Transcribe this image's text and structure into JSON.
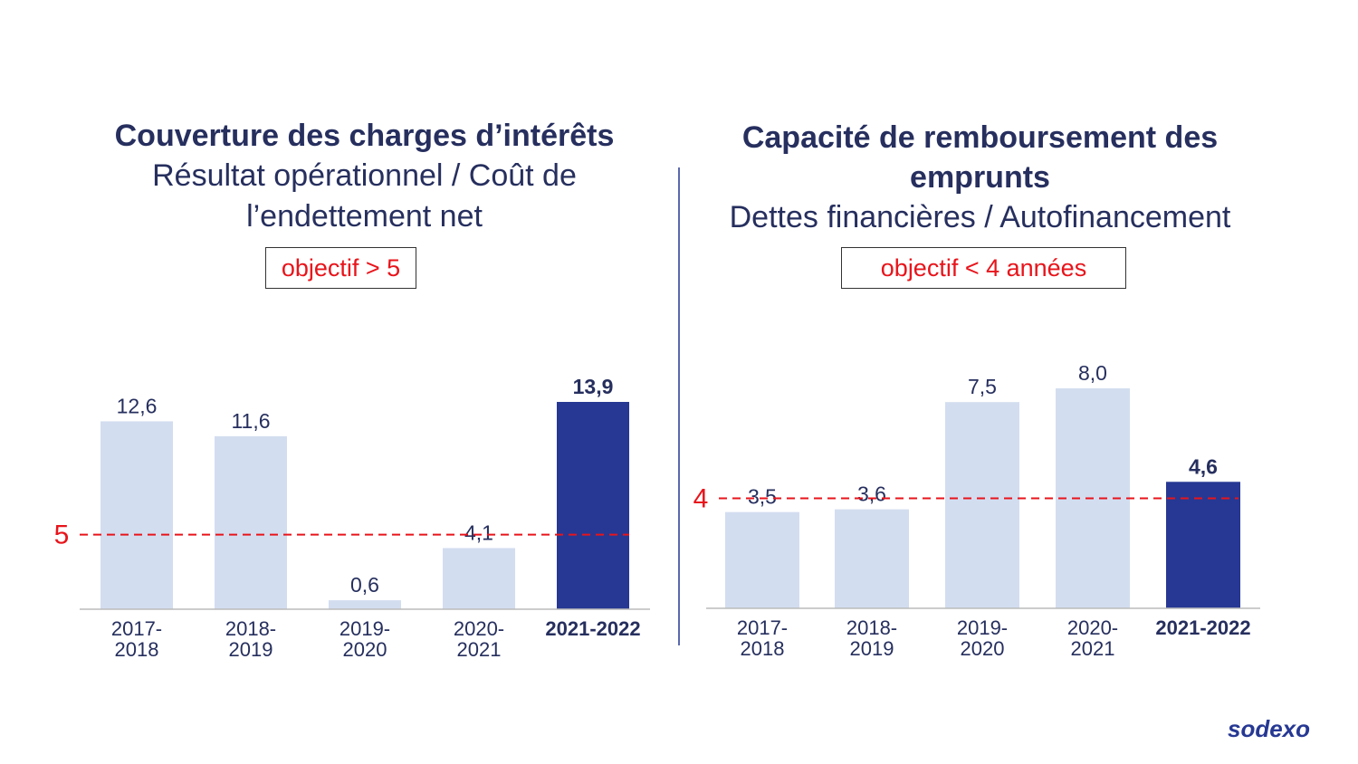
{
  "chart_data": [
    {
      "type": "bar",
      "title": "Couverture des charges d’intérêts",
      "subtitle": "Résultat opérationnel / Coût de l’endettement net",
      "annotation": "objectif > 5",
      "categories": [
        "2017-2018",
        "2018-2019",
        "2019-2020",
        "2020-2021",
        "2021-2022"
      ],
      "values": [
        12.6,
        11.6,
        0.6,
        4.1,
        13.9
      ],
      "value_labels": [
        "12,6",
        "11,6",
        "0,6",
        "4,1",
        "13,9"
      ],
      "colors": [
        "#d3ddf0",
        "#d3ddf0",
        "#d3ddf0",
        "#d3ddf0",
        "#263893"
      ],
      "target": 5,
      "target_color": "#e8141b"
    },
    {
      "type": "bar",
      "title": "Capacité de remboursement des emprunts",
      "subtitle": "Dettes financières / Autofinancement",
      "annotation": "objectif < 4 années",
      "categories": [
        "2017-2018",
        "2018-2019",
        "2019-2020",
        "2020-2021",
        "2021-2022"
      ],
      "values": [
        3.5,
        3.6,
        7.5,
        8.0,
        4.6
      ],
      "value_labels": [
        "3,5",
        "3,6",
        "7,5",
        "8,0",
        "4,6"
      ],
      "colors": [
        "#d3ddf0",
        "#d3ddf0",
        "#d3ddf0",
        "#d3ddf0",
        "#263893"
      ],
      "target": 4,
      "target_color": "#e8141b"
    }
  ],
  "logo": "sodexo"
}
